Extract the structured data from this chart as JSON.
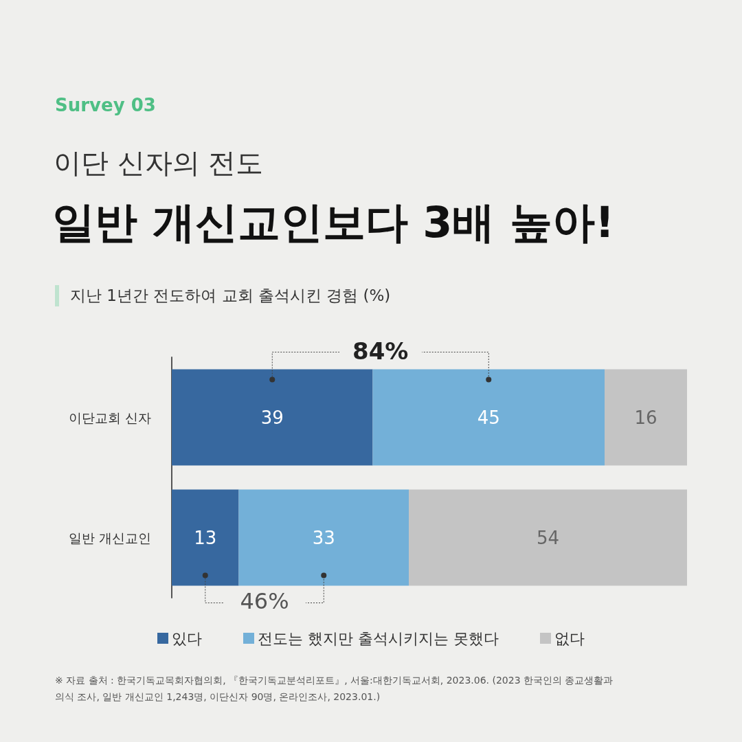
{
  "chart_data": {
    "type": "bar",
    "orientation": "horizontal",
    "stacked": true,
    "data_labels": true,
    "legend": "bottom",
    "subtitle": "이단 신자의 전도",
    "title": "일반 개신교인보다 3배 높아!",
    "categories": [
      "이단교회 신자",
      "일반 개신교인"
    ],
    "series": [
      {
        "name": "있다",
        "color": "#37689f",
        "values": [
          39,
          13
        ]
      },
      {
        "name": "전도는 했지만 출석시키지는 못했다",
        "color": "#73b0d8",
        "values": [
          45,
          33
        ]
      },
      {
        "name": "없다",
        "color": "#c4c4c4",
        "values": [
          16,
          54
        ]
      }
    ],
    "annotations": [
      "Survey 03",
      "지난 1년간 전도하여 교회 출석시킨 경험 (%)",
      "84%",
      "46%",
      "※ 자료 출처 : 한국기독교목회자협의회, 『한국기독교분석리포트』, 서울:대한기독교서회, 2023.06. (2023 한국인의 종교생활과 의식 조사, 일반 개신교인 1,243명, 이단신자 90명, 온라인조사, 2023.01.)"
    ]
  }
}
